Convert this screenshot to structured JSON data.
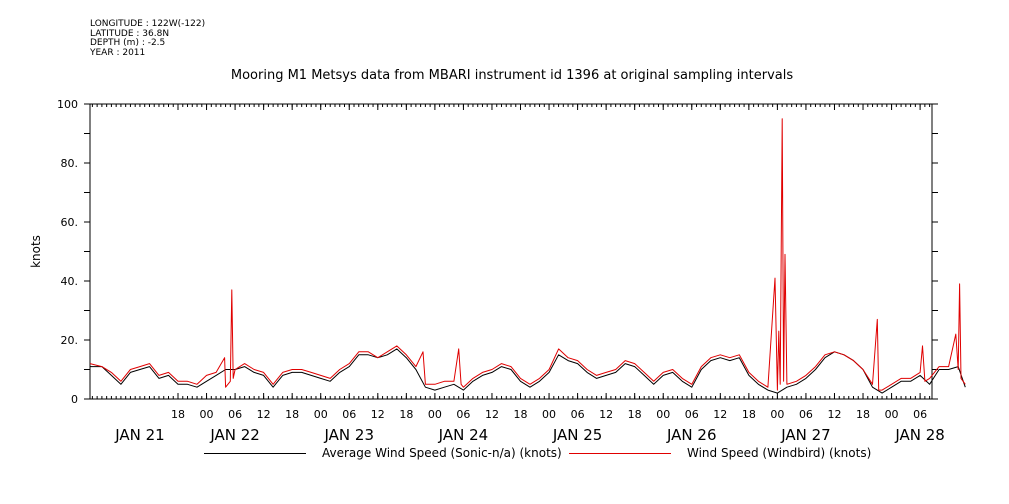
{
  "header": {
    "longitude": "LONGITUDE : 122W(-122)",
    "latitude": "LATITUDE : 36.8N",
    "depth": "DEPTH (m) : -2.5",
    "year": "YEAR : 2011"
  },
  "chart_data": {
    "type": "line",
    "title": "Mooring M1 Metsys data from MBARI instrument id 1396 at original sampling intervals",
    "ylabel": "knots",
    "xlabel": "",
    "ylim": [
      0,
      100
    ],
    "yticks": [
      0,
      20,
      40,
      60,
      80,
      100
    ],
    "ytick_labels": [
      "0",
      "20.",
      "40.",
      "60.",
      "80.",
      "100"
    ],
    "xlim_hours": [
      -9.5,
      167.5
    ],
    "x_start": "JAN 21 09:00",
    "hour_ticks": [
      {
        "h": 9,
        "label": "18"
      },
      {
        "h": 15,
        "label": "00"
      },
      {
        "h": 21,
        "label": "06"
      },
      {
        "h": 27,
        "label": "12"
      },
      {
        "h": 33,
        "label": "18"
      },
      {
        "h": 39,
        "label": "00"
      },
      {
        "h": 45,
        "label": "06"
      },
      {
        "h": 51,
        "label": "12"
      },
      {
        "h": 57,
        "label": "18"
      },
      {
        "h": 63,
        "label": "00"
      },
      {
        "h": 69,
        "label": "06"
      },
      {
        "h": 75,
        "label": "12"
      },
      {
        "h": 81,
        "label": "18"
      },
      {
        "h": 87,
        "label": "00"
      },
      {
        "h": 93,
        "label": "06"
      },
      {
        "h": 99,
        "label": "12"
      },
      {
        "h": 105,
        "label": "18"
      },
      {
        "h": 111,
        "label": "00"
      },
      {
        "h": 117,
        "label": "06"
      },
      {
        "h": 123,
        "label": "12"
      },
      {
        "h": 129,
        "label": "18"
      },
      {
        "h": 135,
        "label": "00"
      },
      {
        "h": 141,
        "label": "06"
      },
      {
        "h": 147,
        "label": "12"
      },
      {
        "h": 153,
        "label": "18"
      },
      {
        "h": 159,
        "label": "00"
      },
      {
        "h": 165,
        "label": "06"
      },
      {
        "h": 171,
        "label": "12"
      }
    ],
    "day_labels": [
      {
        "h": 1,
        "label": "JAN 21"
      },
      {
        "h": 21,
        "label": "JAN 22"
      },
      {
        "h": 45,
        "label": "JAN 23"
      },
      {
        "h": 69,
        "label": "JAN 24"
      },
      {
        "h": 93,
        "label": "JAN 25"
      },
      {
        "h": 117,
        "label": "JAN 26"
      },
      {
        "h": 141,
        "label": "JAN 27"
      },
      {
        "h": 165,
        "label": "JAN 28"
      }
    ],
    "series": [
      {
        "name": "Average Wind Speed (Sonic-n/a) (knots)",
        "color": "#000000",
        "points": [
          [
            -9.5,
            11
          ],
          [
            -7,
            11
          ],
          [
            -5,
            8
          ],
          [
            -3,
            5
          ],
          [
            -1,
            9
          ],
          [
            1,
            10
          ],
          [
            3,
            11
          ],
          [
            5,
            7
          ],
          [
            7,
            8
          ],
          [
            9,
            5
          ],
          [
            11,
            5
          ],
          [
            13,
            4
          ],
          [
            15,
            6
          ],
          [
            17,
            8
          ],
          [
            19,
            10
          ],
          [
            21,
            10
          ],
          [
            23,
            11
          ],
          [
            25,
            9
          ],
          [
            27,
            8
          ],
          [
            29,
            4
          ],
          [
            31,
            8
          ],
          [
            33,
            9
          ],
          [
            35,
            9
          ],
          [
            37,
            8
          ],
          [
            39,
            7
          ],
          [
            41,
            6
          ],
          [
            43,
            9
          ],
          [
            45,
            11
          ],
          [
            47,
            15
          ],
          [
            49,
            15
          ],
          [
            51,
            14
          ],
          [
            53,
            15
          ],
          [
            55,
            17
          ],
          [
            57,
            14
          ],
          [
            59,
            10
          ],
          [
            61,
            4
          ],
          [
            63,
            3
          ],
          [
            65,
            4
          ],
          [
            67,
            5
          ],
          [
            69,
            3
          ],
          [
            71,
            6
          ],
          [
            73,
            8
          ],
          [
            75,
            9
          ],
          [
            77,
            11
          ],
          [
            79,
            10
          ],
          [
            81,
            6
          ],
          [
            83,
            4
          ],
          [
            85,
            6
          ],
          [
            87,
            9
          ],
          [
            89,
            15
          ],
          [
            91,
            13
          ],
          [
            93,
            12
          ],
          [
            95,
            9
          ],
          [
            97,
            7
          ],
          [
            99,
            8
          ],
          [
            101,
            9
          ],
          [
            103,
            12
          ],
          [
            105,
            11
          ],
          [
            107,
            8
          ],
          [
            109,
            5
          ],
          [
            111,
            8
          ],
          [
            113,
            9
          ],
          [
            115,
            6
          ],
          [
            117,
            4
          ],
          [
            119,
            10
          ],
          [
            121,
            13
          ],
          [
            123,
            14
          ],
          [
            125,
            13
          ],
          [
            127,
            14
          ],
          [
            129,
            8
          ],
          [
            131,
            5
          ],
          [
            133,
            3
          ],
          [
            135,
            2
          ],
          [
            137,
            4
          ],
          [
            139,
            5
          ],
          [
            141,
            7
          ],
          [
            143,
            10
          ],
          [
            145,
            14
          ],
          [
            147,
            16
          ],
          [
            149,
            15
          ],
          [
            151,
            13
          ],
          [
            153,
            10
          ],
          [
            155,
            4
          ],
          [
            157,
            2
          ],
          [
            159,
            4
          ],
          [
            161,
            6
          ],
          [
            163,
            6
          ],
          [
            165,
            8
          ],
          [
            167,
            5
          ],
          [
            169,
            10
          ],
          [
            171,
            10
          ],
          [
            173,
            11
          ],
          [
            174.5,
            4
          ]
        ]
      },
      {
        "name": "Wind Speed (Windbird) (knots)",
        "color": "#e00000",
        "points": [
          [
            -9.5,
            12
          ],
          [
            -7,
            11
          ],
          [
            -5,
            9
          ],
          [
            -3,
            6
          ],
          [
            -1,
            10
          ],
          [
            1,
            11
          ],
          [
            3,
            12
          ],
          [
            5,
            8
          ],
          [
            7,
            9
          ],
          [
            9,
            6
          ],
          [
            11,
            6
          ],
          [
            13,
            5
          ],
          [
            15,
            8
          ],
          [
            17,
            9
          ],
          [
            18.8,
            14
          ],
          [
            19,
            4
          ],
          [
            20,
            6
          ],
          [
            20.3,
            37
          ],
          [
            20.6,
            7
          ],
          [
            21,
            10
          ],
          [
            23,
            12
          ],
          [
            25,
            10
          ],
          [
            27,
            9
          ],
          [
            29,
            5
          ],
          [
            31,
            9
          ],
          [
            33,
            10
          ],
          [
            35,
            10
          ],
          [
            37,
            9
          ],
          [
            39,
            8
          ],
          [
            41,
            7
          ],
          [
            43,
            10
          ],
          [
            45,
            12
          ],
          [
            47,
            16
          ],
          [
            49,
            16
          ],
          [
            51,
            14
          ],
          [
            53,
            16
          ],
          [
            55,
            18
          ],
          [
            57,
            15
          ],
          [
            59,
            11
          ],
          [
            60.5,
            16
          ],
          [
            61,
            5
          ],
          [
            63,
            5
          ],
          [
            65,
            6
          ],
          [
            67,
            6
          ],
          [
            68,
            17
          ],
          [
            68.5,
            5
          ],
          [
            69,
            4
          ],
          [
            71,
            7
          ],
          [
            73,
            9
          ],
          [
            75,
            10
          ],
          [
            77,
            12
          ],
          [
            79,
            11
          ],
          [
            81,
            7
          ],
          [
            83,
            5
          ],
          [
            85,
            7
          ],
          [
            87,
            10
          ],
          [
            89,
            17
          ],
          [
            91,
            14
          ],
          [
            93,
            13
          ],
          [
            95,
            10
          ],
          [
            97,
            8
          ],
          [
            99,
            9
          ],
          [
            101,
            10
          ],
          [
            103,
            13
          ],
          [
            105,
            12
          ],
          [
            107,
            9
          ],
          [
            109,
            6
          ],
          [
            111,
            9
          ],
          [
            113,
            10
          ],
          [
            115,
            7
          ],
          [
            117,
            5
          ],
          [
            119,
            11
          ],
          [
            121,
            14
          ],
          [
            123,
            15
          ],
          [
            125,
            14
          ],
          [
            127,
            15
          ],
          [
            129,
            9
          ],
          [
            131,
            6
          ],
          [
            133,
            4
          ],
          [
            134.5,
            41
          ],
          [
            135,
            3
          ],
          [
            135.3,
            23
          ],
          [
            135.6,
            5
          ],
          [
            136,
            95
          ],
          [
            136.3,
            6
          ],
          [
            136.6,
            49
          ],
          [
            137,
            5
          ],
          [
            139,
            6
          ],
          [
            141,
            8
          ],
          [
            143,
            11
          ],
          [
            145,
            15
          ],
          [
            147,
            16
          ],
          [
            149,
            15
          ],
          [
            151,
            13
          ],
          [
            153,
            10
          ],
          [
            155,
            5
          ],
          [
            156,
            27
          ],
          [
            156.3,
            3
          ],
          [
            157,
            3
          ],
          [
            159,
            5
          ],
          [
            161,
            7
          ],
          [
            163,
            7
          ],
          [
            165,
            9
          ],
          [
            165.5,
            18
          ],
          [
            166,
            6
          ],
          [
            167,
            7
          ],
          [
            169,
            11
          ],
          [
            171,
            11
          ],
          [
            172.5,
            22
          ],
          [
            173,
            10
          ],
          [
            173.3,
            39
          ],
          [
            173.6,
            7
          ],
          [
            174.5,
            5
          ]
        ]
      }
    ]
  }
}
